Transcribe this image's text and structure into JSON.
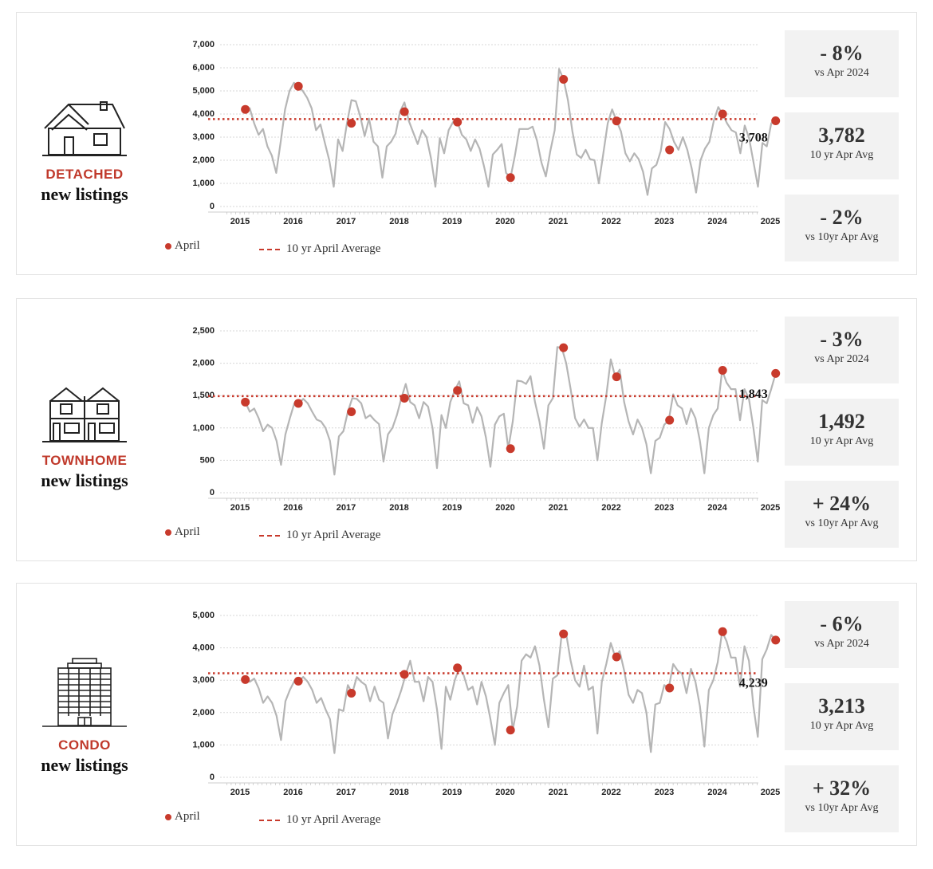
{
  "legend": {
    "april": "April",
    "avg": "10 yr April Average"
  },
  "colors": {
    "line": "#b5b5b5",
    "accent": "#c83a2c",
    "grid": "#d7d7d7",
    "card": "#f2f2f2"
  },
  "panels": [
    {
      "type_label": "DETACHED",
      "sub_label": "new listings",
      "icon": "house-icon",
      "stats": [
        {
          "value": "- 8%",
          "label": "vs Apr 2024"
        },
        {
          "value": "3,782",
          "label": "10 yr Apr Avg"
        },
        {
          "value": "- 2%",
          "label": "vs 10yr Apr Avg"
        }
      ],
      "chart_data": {
        "type": "line",
        "title": "Detached new listings",
        "yticks": [
          0,
          1000,
          2000,
          3000,
          4000,
          5000,
          6000,
          7000
        ],
        "ytick_labels": [
          "0",
          "1,000",
          "2,000",
          "3,000",
          "4,000",
          "5,000",
          "6,000",
          "7,000"
        ],
        "ylim": [
          0,
          7000
        ],
        "x_range": [
          2015,
          2025.3
        ],
        "xtick_labels": [
          "2015",
          "2016",
          "2017",
          "2018",
          "2019",
          "2020",
          "2021",
          "2022",
          "2023",
          "2024",
          "2025"
        ],
        "average": 3782,
        "last_label": "3,708",
        "april": [
          4200,
          5200,
          3600,
          4100,
          3650,
          1250,
          5500,
          3700,
          2450,
          4000,
          3708
        ],
        "monthly": [
          4150,
          4250,
          3600,
          3100,
          3350,
          2600,
          2200,
          1450,
          2800,
          4200,
          5000,
          5350,
          5200,
          5000,
          4700,
          4250,
          3300,
          3550,
          2750,
          2000,
          850,
          2900,
          2400,
          3600,
          4600,
          4550,
          3900,
          3050,
          3800,
          2800,
          2600,
          1250,
          2600,
          2800,
          3150,
          4100,
          4500,
          3700,
          3200,
          2700,
          3300,
          3000,
          2100,
          850,
          2950,
          2300,
          3300,
          3650,
          3650,
          3100,
          2900,
          2400,
          2900,
          2500,
          1750,
          850,
          2250,
          2450,
          2700,
          1450,
          1250,
          2200,
          3350,
          3350,
          3350,
          3450,
          2850,
          1900,
          1300,
          2400,
          3300,
          5950,
          5500,
          4600,
          3250,
          2250,
          2100,
          2450,
          2050,
          2000,
          1000,
          2300,
          3600,
          4200,
          3700,
          3250,
          2300,
          1950,
          2300,
          2050,
          1500,
          500,
          1650,
          1800,
          2400,
          3650,
          3350,
          2800,
          2450,
          3000,
          2450,
          1650,
          600,
          2000,
          2500,
          2800,
          3700,
          4300,
          4000,
          3600,
          3300,
          3200,
          2300,
          3500,
          2950,
          1900,
          850,
          2750,
          2600,
          3600,
          3708
        ]
      }
    },
    {
      "type_label": "TOWNHOME",
      "sub_label": "new listings",
      "icon": "townhome-icon",
      "stats": [
        {
          "value": "- 3%",
          "label": "vs Apr 2024"
        },
        {
          "value": "1,492",
          "label": "10 yr Apr Avg"
        },
        {
          "value": "+ 24%",
          "label": "vs 10yr Apr Avg"
        }
      ],
      "chart_data": {
        "type": "line",
        "title": "Townhome new listings",
        "yticks": [
          0,
          500,
          1000,
          1500,
          2000,
          2500
        ],
        "ytick_labels": [
          "0",
          "500",
          "1,000",
          "1,500",
          "2,000",
          "2,500"
        ],
        "ylim": [
          0,
          2500
        ],
        "x_range": [
          2015,
          2025.3
        ],
        "xtick_labels": [
          "2015",
          "2016",
          "2017",
          "2018",
          "2019",
          "2020",
          "2021",
          "2022",
          "2023",
          "2024",
          "2025"
        ],
        "average": 1492,
        "last_label": "1,843",
        "april": [
          1400,
          1380,
          1250,
          1460,
          1580,
          680,
          2240,
          1790,
          1120,
          1890,
          1843
        ],
        "monthly": [
          1400,
          1250,
          1300,
          1150,
          950,
          1050,
          1000,
          800,
          430,
          900,
          1150,
          1380,
          1380,
          1450,
          1380,
          1250,
          1130,
          1100,
          1000,
          800,
          280,
          870,
          950,
          1250,
          1460,
          1450,
          1380,
          1150,
          1200,
          1120,
          1060,
          480,
          900,
          1000,
          1200,
          1460,
          1680,
          1400,
          1350,
          1150,
          1400,
          1330,
          1000,
          380,
          1200,
          1000,
          1400,
          1580,
          1720,
          1380,
          1350,
          1080,
          1320,
          1180,
          850,
          400,
          1050,
          1180,
          1220,
          680,
          1100,
          1730,
          1720,
          1680,
          1800,
          1400,
          1100,
          680,
          1350,
          1460,
          2250,
          2240,
          2000,
          1600,
          1150,
          1020,
          1130,
          1000,
          1000,
          500,
          1080,
          1500,
          2060,
          1790,
          1900,
          1400,
          1100,
          900,
          1130,
          1000,
          750,
          300,
          800,
          850,
          1050,
          1120,
          1520,
          1350,
          1300,
          1060,
          1300,
          1150,
          800,
          300,
          1000,
          1200,
          1300,
          1890,
          1700,
          1600,
          1600,
          1120,
          1600,
          1450,
          1000,
          480,
          1430,
          1380,
          1600,
          1843
        ]
      }
    },
    {
      "type_label": "CONDO",
      "sub_label": "new listings",
      "icon": "condo-icon",
      "stats": [
        {
          "value": "- 6%",
          "label": "vs Apr 2024"
        },
        {
          "value": "3,213",
          "label": "10 yr Apr Avg"
        },
        {
          "value": "+ 32%",
          "label": "vs 10yr Apr Avg"
        }
      ],
      "chart_data": {
        "type": "line",
        "title": "Condo new listings",
        "yticks": [
          0,
          1000,
          2000,
          3000,
          4000,
          5000
        ],
        "ytick_labels": [
          "0",
          "1,000",
          "2,000",
          "3,000",
          "4,000",
          "5,000"
        ],
        "ylim": [
          0,
          5000
        ],
        "x_range": [
          2015,
          2025.3
        ],
        "xtick_labels": [
          "2015",
          "2016",
          "2017",
          "2018",
          "2019",
          "2020",
          "2021",
          "2022",
          "2023",
          "2024",
          "2025"
        ],
        "average": 3213,
        "last_label": "4,239",
        "april": [
          3020,
          2970,
          2600,
          3180,
          3380,
          1460,
          4430,
          3720,
          2760,
          4500,
          4239
        ],
        "monthly": [
          3020,
          2950,
          3050,
          2750,
          2300,
          2500,
          2300,
          1900,
          1150,
          2350,
          2700,
          2970,
          2970,
          3100,
          2950,
          2700,
          2300,
          2450,
          2100,
          1800,
          750,
          2100,
          2050,
          2850,
          2600,
          3100,
          2950,
          2850,
          2350,
          2800,
          2400,
          2300,
          1200,
          1950,
          2300,
          2700,
          3180,
          3600,
          2950,
          2950,
          2350,
          3100,
          2950,
          2100,
          880,
          2800,
          2400,
          3000,
          3380,
          3150,
          2700,
          2800,
          2250,
          2950,
          2500,
          1800,
          1000,
          2300,
          2600,
          2850,
          1460,
          2200,
          3600,
          3800,
          3700,
          4050,
          3450,
          2400,
          1550,
          3050,
          3150,
          4430,
          4430,
          3600,
          3000,
          2800,
          3450,
          2700,
          2800,
          1350,
          2950,
          3500,
          4150,
          3720,
          3900,
          3300,
          2550,
          2300,
          2700,
          2600,
          2000,
          780,
          2250,
          2300,
          2850,
          2760,
          3500,
          3300,
          3200,
          2600,
          3350,
          2950,
          2200,
          950,
          2700,
          3000,
          3550,
          4500,
          4200,
          3700,
          3700,
          2800,
          4050,
          3600,
          2200,
          1250,
          3650,
          3950,
          4400,
          4239
        ]
      }
    }
  ]
}
